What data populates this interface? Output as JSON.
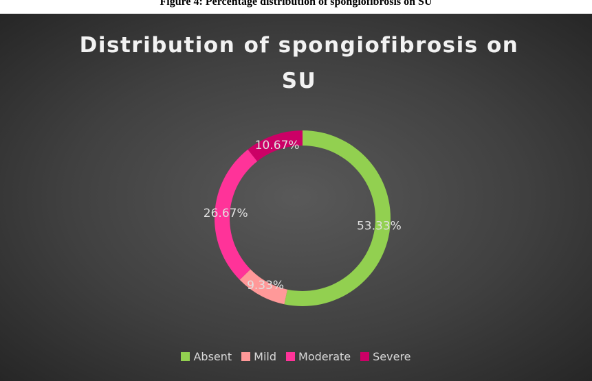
{
  "caption": "Figure 4: Percentage distribution of spongiofibrosis on SU",
  "chart_data": {
    "type": "pie",
    "title": "Distribution of spongiofibrosis on SU",
    "categories": [
      "Absent",
      "Mild",
      "Moderate",
      "Severe"
    ],
    "values": [
      53.33,
      9.33,
      26.67,
      10.67
    ],
    "value_labels": [
      "53.33%",
      "9.33%",
      "26.67%",
      "10.67%"
    ],
    "colors": [
      "#92d050",
      "#ff9999",
      "#ff3399",
      "#cc0066"
    ],
    "legend": "bottom"
  }
}
